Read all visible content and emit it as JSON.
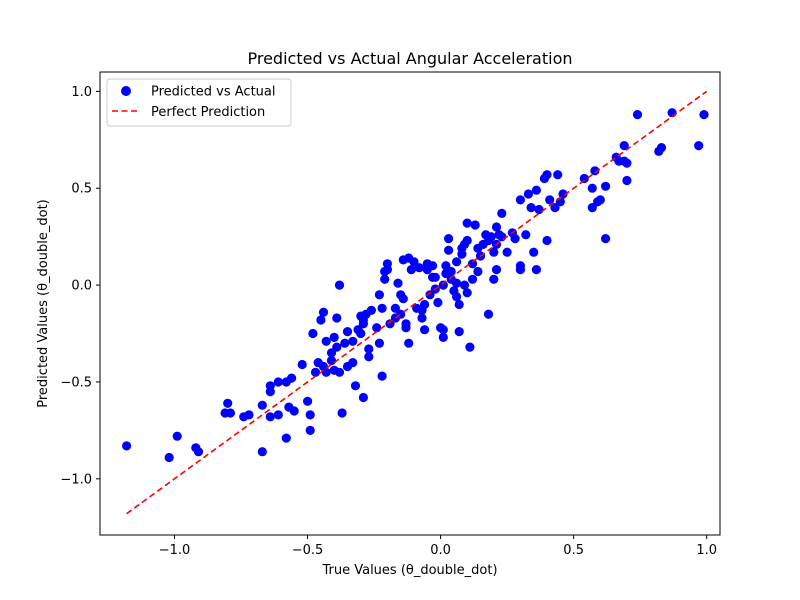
{
  "chart_data": {
    "type": "scatter",
    "title": "Predicted vs Actual Angular Acceleration",
    "xlabel": "True Values (θ_double_dot)",
    "ylabel": "Predicted Values (θ_double_dot)",
    "xlim": [
      -1.28,
      1.05
    ],
    "ylim": [
      -1.29,
      1.1
    ],
    "xticks": [
      -1.0,
      -0.5,
      0.0,
      0.5,
      1.0
    ],
    "xtick_labels": [
      "−1.0",
      "−0.5",
      "0.0",
      "0.5",
      "1.0"
    ],
    "yticks": [
      -1.0,
      -0.5,
      0.0,
      0.5,
      1.0
    ],
    "ytick_labels": [
      "−1.0",
      "−0.5",
      "0.0",
      "0.5",
      "1.0"
    ],
    "grid": false,
    "legend_position": "top-left",
    "series": [
      {
        "name": "Predicted vs Actual",
        "kind": "scatter",
        "color": "#0000ff",
        "points": [
          [
            -1.18,
            -0.83
          ],
          [
            -1.02,
            -0.89
          ],
          [
            -0.99,
            -0.78
          ],
          [
            -0.92,
            -0.84
          ],
          [
            -0.91,
            -0.86
          ],
          [
            -0.8,
            -0.61
          ],
          [
            -0.81,
            -0.66
          ],
          [
            -0.79,
            -0.66
          ],
          [
            -0.74,
            -0.68
          ],
          [
            -0.72,
            -0.67
          ],
          [
            -0.67,
            -0.86
          ],
          [
            -0.67,
            -0.62
          ],
          [
            -0.64,
            -0.68
          ],
          [
            -0.61,
            -0.67
          ],
          [
            -0.64,
            -0.55
          ],
          [
            -0.64,
            -0.52
          ],
          [
            -0.61,
            -0.5
          ],
          [
            -0.58,
            -0.5
          ],
          [
            -0.56,
            -0.48
          ],
          [
            -0.57,
            -0.63
          ],
          [
            -0.55,
            -0.65
          ],
          [
            -0.58,
            -0.79
          ],
          [
            -0.5,
            -0.6
          ],
          [
            -0.49,
            -0.67
          ],
          [
            -0.49,
            -0.75
          ],
          [
            -0.52,
            -0.41
          ],
          [
            -0.47,
            -0.45
          ],
          [
            -0.46,
            -0.4
          ],
          [
            -0.44,
            -0.42
          ],
          [
            -0.43,
            -0.45
          ],
          [
            -0.41,
            -0.39
          ],
          [
            -0.4,
            -0.44
          ],
          [
            -0.38,
            -0.45
          ],
          [
            -0.37,
            -0.66
          ],
          [
            -0.35,
            -0.42
          ],
          [
            -0.33,
            -0.4
          ],
          [
            -0.32,
            -0.52
          ],
          [
            -0.29,
            -0.58
          ],
          [
            -0.48,
            -0.25
          ],
          [
            -0.45,
            -0.18
          ],
          [
            -0.44,
            -0.14
          ],
          [
            -0.43,
            -0.29
          ],
          [
            -0.41,
            -0.35
          ],
          [
            -0.4,
            -0.27
          ],
          [
            -0.39,
            -0.17
          ],
          [
            -0.39,
            -0.32
          ],
          [
            -0.38,
            0.0
          ],
          [
            -0.36,
            -0.3
          ],
          [
            -0.35,
            -0.24
          ],
          [
            -0.33,
            -0.29
          ],
          [
            -0.31,
            -0.23
          ],
          [
            -0.3,
            -0.16
          ],
          [
            -0.3,
            -0.25
          ],
          [
            -0.29,
            -0.2
          ],
          [
            -0.29,
            -0.18
          ],
          [
            -0.28,
            -0.15
          ],
          [
            -0.27,
            -0.33
          ],
          [
            -0.27,
            -0.37
          ],
          [
            -0.26,
            -0.13
          ],
          [
            -0.24,
            -0.22
          ],
          [
            -0.23,
            -0.05
          ],
          [
            -0.23,
            -0.3
          ],
          [
            -0.22,
            -0.12
          ],
          [
            -0.22,
            -0.47
          ],
          [
            -0.21,
            0.03
          ],
          [
            -0.21,
            0.07
          ],
          [
            -0.2,
            0.11
          ],
          [
            -0.2,
            0.08
          ],
          [
            -0.19,
            -0.2
          ],
          [
            -0.17,
            -0.12
          ],
          [
            -0.17,
            -0.17
          ],
          [
            -0.16,
            0.01
          ],
          [
            -0.15,
            -0.05
          ],
          [
            -0.15,
            -0.15
          ],
          [
            -0.14,
            -0.07
          ],
          [
            -0.13,
            -0.2
          ],
          [
            -0.13,
            -0.22
          ],
          [
            -0.14,
            0.13
          ],
          [
            -0.12,
            0.14
          ],
          [
            -0.12,
            -0.3
          ],
          [
            -0.11,
            0.08
          ],
          [
            -0.1,
            0.12
          ],
          [
            -0.09,
            -0.12
          ],
          [
            -0.08,
            0.09
          ],
          [
            -0.07,
            -0.17
          ],
          [
            -0.07,
            -0.13
          ],
          [
            -0.06,
            -0.23
          ],
          [
            -0.06,
            -0.1
          ],
          [
            -0.05,
            0.08
          ],
          [
            -0.05,
            0.11
          ],
          [
            -0.04,
            -0.05
          ],
          [
            -0.03,
            0.1
          ],
          [
            -0.03,
            0.04
          ],
          [
            -0.02,
            0.04
          ],
          [
            -0.02,
            -0.02
          ],
          [
            -0.01,
            -0.09
          ],
          [
            0.0,
            -0.22
          ],
          [
            0.01,
            -0.27
          ],
          [
            0.01,
            -0.23
          ],
          [
            0.01,
            0.0
          ],
          [
            0.02,
            0.06
          ],
          [
            0.02,
            0.1
          ],
          [
            0.03,
            0.18
          ],
          [
            0.03,
            0.24
          ],
          [
            0.04,
            0.07
          ],
          [
            0.04,
            0.03
          ],
          [
            0.05,
            -0.03
          ],
          [
            0.06,
            0.01
          ],
          [
            0.06,
            0.12
          ],
          [
            0.06,
            -0.06
          ],
          [
            0.07,
            -0.1
          ],
          [
            0.07,
            -0.24
          ],
          [
            0.08,
            0.16
          ],
          [
            0.08,
            0.19
          ],
          [
            0.09,
            0.21
          ],
          [
            0.09,
            0.0
          ],
          [
            0.1,
            0.32
          ],
          [
            0.1,
            0.23
          ],
          [
            0.1,
            -0.04
          ],
          [
            0.11,
            -0.32
          ],
          [
            0.12,
            0.11
          ],
          [
            0.12,
            0.03
          ],
          [
            0.13,
            0.31
          ],
          [
            0.14,
            0.07
          ],
          [
            0.14,
            0.19
          ],
          [
            0.15,
            0.15
          ],
          [
            0.16,
            0.21
          ],
          [
            0.17,
            0.26
          ],
          [
            0.18,
            0.23
          ],
          [
            0.18,
            -0.15
          ],
          [
            0.19,
            0.25
          ],
          [
            0.2,
            0.17
          ],
          [
            0.2,
            0.03
          ],
          [
            0.21,
            0.21
          ],
          [
            0.21,
            0.08
          ],
          [
            0.21,
            0.3
          ],
          [
            0.22,
            0.26
          ],
          [
            0.23,
            0.25
          ],
          [
            0.23,
            0.37
          ],
          [
            0.25,
            0.17
          ],
          [
            0.27,
            0.27
          ],
          [
            0.28,
            0.24
          ],
          [
            0.3,
            0.1
          ],
          [
            0.3,
            0.08
          ],
          [
            0.3,
            0.44
          ],
          [
            0.32,
            0.26
          ],
          [
            0.33,
            0.47
          ],
          [
            0.34,
            0.4
          ],
          [
            0.35,
            0.17
          ],
          [
            0.36,
            0.08
          ],
          [
            0.36,
            0.49
          ],
          [
            0.37,
            0.39
          ],
          [
            0.39,
            0.55
          ],
          [
            0.4,
            0.57
          ],
          [
            0.4,
            0.23
          ],
          [
            0.41,
            0.44
          ],
          [
            0.43,
            0.4
          ],
          [
            0.44,
            0.57
          ],
          [
            0.45,
            0.43
          ],
          [
            0.46,
            0.47
          ],
          [
            0.54,
            0.55
          ],
          [
            0.57,
            0.4
          ],
          [
            0.57,
            0.5
          ],
          [
            0.58,
            0.59
          ],
          [
            0.59,
            0.43
          ],
          [
            0.6,
            0.44
          ],
          [
            0.62,
            0.51
          ],
          [
            0.62,
            0.24
          ],
          [
            0.66,
            0.66
          ],
          [
            0.67,
            0.64
          ],
          [
            0.69,
            0.72
          ],
          [
            0.69,
            0.64
          ],
          [
            0.7,
            0.63
          ],
          [
            0.7,
            0.54
          ],
          [
            0.74,
            0.88
          ],
          [
            0.82,
            0.69
          ],
          [
            0.83,
            0.71
          ],
          [
            0.87,
            0.89
          ],
          [
            0.97,
            0.72
          ],
          [
            0.99,
            0.88
          ]
        ]
      },
      {
        "name": "Perfect Prediction",
        "kind": "line",
        "color": "#ff0000",
        "style": "dashed",
        "points": [
          [
            -1.18,
            -1.18
          ],
          [
            1.0,
            1.0
          ]
        ]
      }
    ]
  }
}
